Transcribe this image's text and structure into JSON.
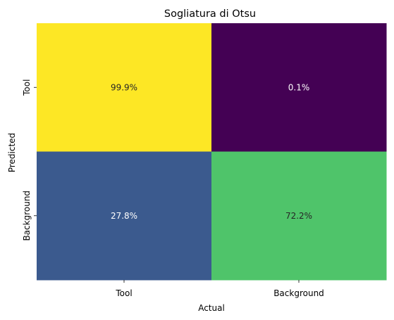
{
  "chart_data": {
    "type": "heatmap",
    "title": "Sogliatura di Otsu",
    "xlabel": "Actual",
    "ylabel": "Predicted",
    "x_categories": [
      "Tool",
      "Background"
    ],
    "y_categories": [
      "Tool",
      "Background"
    ],
    "values": [
      [
        99.9,
        0.1
      ],
      [
        27.8,
        72.2
      ]
    ],
    "cell_labels": [
      [
        "99.9%",
        "0.1%"
      ],
      [
        "27.8%",
        "72.2%"
      ]
    ],
    "colormap": "viridis",
    "colorbar": false,
    "cell_colors": [
      [
        "#fde725",
        "#440154"
      ],
      [
        "#3b5a8e",
        "#4fc46a"
      ]
    ],
    "label_colors": [
      [
        "#262626",
        "#ffffff"
      ],
      [
        "#ffffff",
        "#262626"
      ]
    ]
  }
}
